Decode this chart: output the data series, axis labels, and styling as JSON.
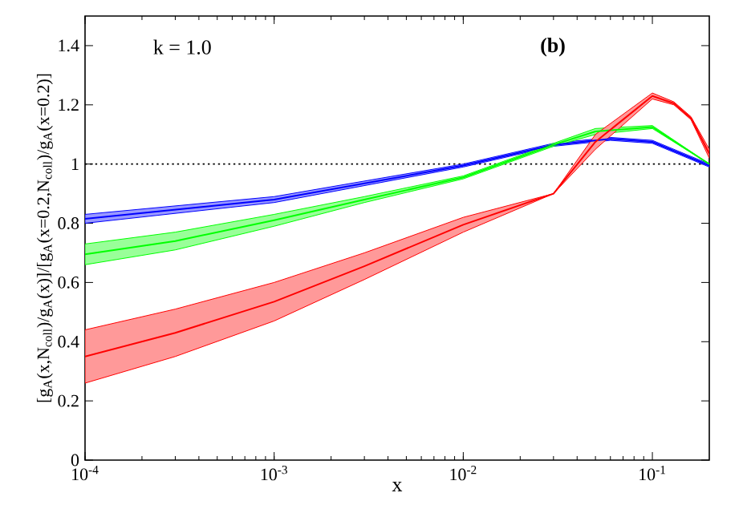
{
  "chart_data": {
    "type": "line",
    "xlabel": "x",
    "ylabel": "[g$_{A}$(x,N$_{coll}$)/g$_{A}$(x)]/[g$_{A}$(x=0.2,N$_{coll}$)/g$_{A}$(x=0.2)]",
    "annotations": [
      "k = 1.0",
      "(b)"
    ],
    "xlim": [
      0.0001,
      0.2
    ],
    "ylim": [
      0,
      1.5
    ],
    "log": "x",
    "xticks": [
      {
        "value": 0.0001,
        "label": "10$^{-4}$"
      },
      {
        "value": 0.001,
        "label": "10$^{-3}$"
      },
      {
        "value": 0.01,
        "label": "10$^{-2}$"
      },
      {
        "value": 0.1,
        "label": "10$^{-1}$"
      }
    ],
    "yticks": [
      0,
      0.2,
      0.4,
      0.6,
      0.8,
      1,
      1.2,
      1.4
    ],
    "ref_lines": [
      {
        "axis": "y",
        "value": 1,
        "color": "#000000",
        "line_style": "dotted"
      }
    ],
    "series": [
      {
        "color": "#0000ff",
        "x": [
          0.0001,
          0.001,
          0.01,
          0.03,
          0.06,
          0.1,
          0.2
        ],
        "lower": [
          0.8,
          0.87,
          0.99,
          1.06,
          1.08,
          1.07,
          0.99
        ],
        "upper": [
          0.83,
          0.89,
          1.0,
          1.07,
          1.09,
          1.08,
          1.0
        ],
        "values": [
          0.815,
          0.88,
          0.995,
          1.065,
          1.085,
          1.075,
          0.995
        ]
      },
      {
        "color": "#00ff00",
        "x": [
          0.0001,
          0.0003,
          0.001,
          0.003,
          0.01,
          0.03,
          0.05,
          0.1,
          0.2
        ],
        "lower": [
          0.66,
          0.71,
          0.79,
          0.87,
          0.95,
          1.06,
          1.1,
          1.12,
          1.0
        ],
        "upper": [
          0.73,
          0.77,
          0.83,
          0.89,
          0.96,
          1.07,
          1.12,
          1.13,
          1.0
        ],
        "values": [
          0.695,
          0.74,
          0.81,
          0.88,
          0.955,
          1.065,
          1.11,
          1.125,
          1.0
        ]
      },
      {
        "color": "#ff0000",
        "x": [
          0.0001,
          0.0003,
          0.001,
          0.003,
          0.01,
          0.03,
          0.05,
          0.1,
          0.13,
          0.16,
          0.2
        ],
        "lower": [
          0.26,
          0.35,
          0.47,
          0.61,
          0.77,
          0.9,
          1.05,
          1.22,
          1.2,
          1.15,
          1.02
        ],
        "upper": [
          0.44,
          0.51,
          0.6,
          0.7,
          0.82,
          0.9,
          1.1,
          1.24,
          1.21,
          1.16,
          1.05
        ],
        "values": [
          0.35,
          0.43,
          0.535,
          0.655,
          0.795,
          0.9,
          1.075,
          1.23,
          1.205,
          1.155,
          1.035
        ]
      }
    ]
  }
}
